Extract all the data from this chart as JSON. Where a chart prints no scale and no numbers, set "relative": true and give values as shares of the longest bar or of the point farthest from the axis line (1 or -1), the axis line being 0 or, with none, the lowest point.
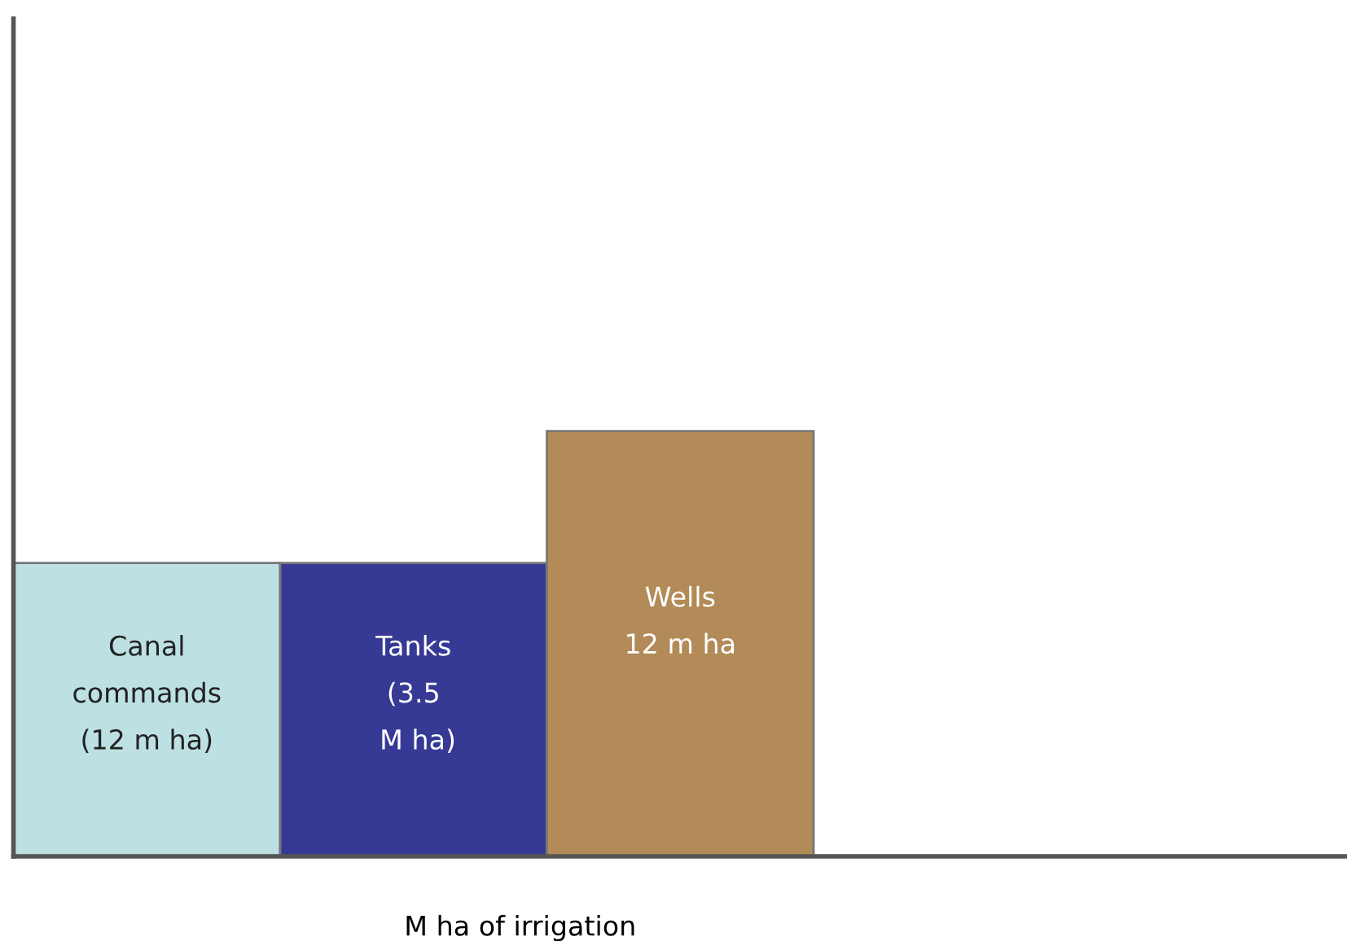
{
  "chart_data": {
    "type": "bar",
    "relative": true,
    "categories": [
      "Canal\ncommands\n(12 m ha)",
      "Tanks\n(3.5\n M ha)",
      "Wells\n12 m ha"
    ],
    "values": [
      0.69,
      0.69,
      1
    ],
    "colors": [
      "#bde0e3",
      "#373a94",
      "#b38b58"
    ],
    "xlabel": "M ha of irrigation"
  }
}
